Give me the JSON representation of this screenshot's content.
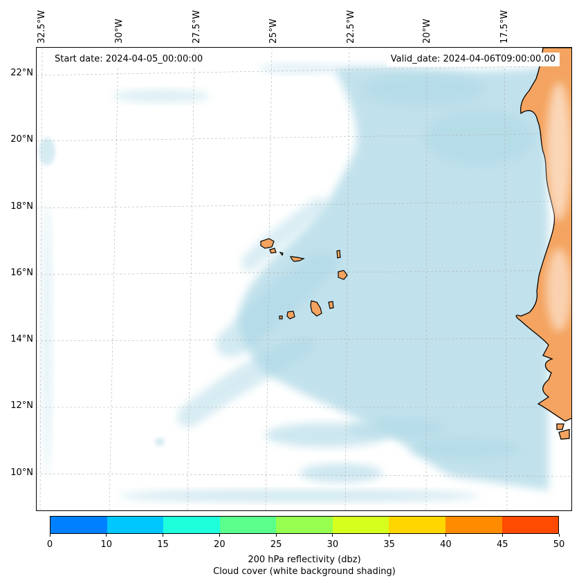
{
  "map": {
    "longitude_labels": [
      "32.5°W",
      "30°W",
      "27.5°W",
      "25°W",
      "22.5°W",
      "20°W",
      "17.5°W"
    ],
    "latitude_labels": [
      "22°N",
      "20°N",
      "18°N",
      "16°N",
      "14°N",
      "12°N",
      "10°N"
    ],
    "start_date": "Start date: 2024-04-05_00:00:00",
    "valid_date": "Valid_date: 2024-04-06T09:00:00.00",
    "land_color": "#f4a460",
    "cloud_color": "#add8e6",
    "coastline_color": "#000000",
    "gridline_color": "#b0b0b0"
  },
  "colorbar": {
    "colors": [
      "#0080ff",
      "#00c8ff",
      "#1effdc",
      "#5aff8c",
      "#96ff50",
      "#d7ff1e",
      "#ffd700",
      "#ff8c00",
      "#ff4b00"
    ],
    "ticks": [
      "0",
      "10",
      "15",
      "20",
      "25",
      "30",
      "35",
      "40",
      "45",
      "50"
    ],
    "label": "200 hPa reflectivity (dbz)",
    "sublabel": "Cloud cover (white background shading)"
  }
}
